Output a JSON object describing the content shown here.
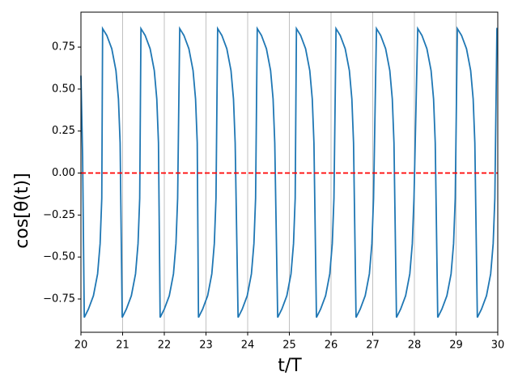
{
  "chart_data": {
    "type": "line",
    "xlabel": "t/T",
    "ylabel": "cos[θ(t)]",
    "x": [
      20.0,
      20.04,
      20.08,
      20.18,
      20.3,
      20.4,
      20.46,
      20.5,
      20.52,
      20.62,
      20.74,
      20.84,
      20.9,
      20.94,
      20.99,
      21.09,
      21.21,
      21.31,
      21.37,
      21.41,
      21.44,
      21.54,
      21.66,
      21.76,
      21.82,
      21.86,
      21.9,
      22.0,
      22.12,
      22.22,
      22.28,
      22.32,
      22.37,
      22.47,
      22.59,
      22.69,
      22.75,
      22.79,
      22.82,
      22.92,
      23.04,
      23.14,
      23.2,
      23.24,
      23.28,
      23.38,
      23.5,
      23.6,
      23.66,
      23.7,
      23.77,
      23.87,
      23.99,
      24.09,
      24.15,
      24.19,
      24.23,
      24.33,
      24.45,
      24.55,
      24.61,
      24.65,
      24.72,
      24.82,
      24.94,
      25.04,
      25.1,
      25.14,
      25.17,
      25.27,
      25.39,
      25.49,
      25.55,
      25.59,
      25.65,
      25.75,
      25.87,
      25.97,
      26.03,
      26.07,
      26.12,
      26.22,
      26.34,
      26.44,
      26.5,
      26.54,
      26.6,
      26.7,
      26.82,
      26.92,
      26.98,
      27.02,
      27.09,
      27.19,
      27.31,
      27.41,
      27.47,
      27.51,
      27.57,
      27.67,
      27.79,
      27.89,
      27.95,
      27.99,
      28.08,
      28.18,
      28.3,
      28.4,
      28.46,
      28.5,
      28.56,
      28.66,
      28.78,
      28.88,
      28.94,
      28.98,
      29.03,
      29.13,
      29.25,
      29.35,
      29.41,
      29.45,
      29.51,
      29.61,
      29.73,
      29.83,
      29.89,
      29.93,
      29.98,
      30.0
    ],
    "series": [
      {
        "color": "#1f77b4",
        "values": [
          0.58,
          0.1,
          -0.86,
          -0.81,
          -0.73,
          -0.6,
          -0.42,
          -0.15,
          0.86,
          0.82,
          0.74,
          0.61,
          0.44,
          0.18,
          -0.86,
          -0.81,
          -0.73,
          -0.6,
          -0.42,
          -0.15,
          0.86,
          0.82,
          0.74,
          0.61,
          0.44,
          0.18,
          -0.86,
          -0.81,
          -0.73,
          -0.6,
          -0.42,
          -0.15,
          0.86,
          0.82,
          0.74,
          0.61,
          0.44,
          0.18,
          -0.86,
          -0.81,
          -0.73,
          -0.6,
          -0.42,
          -0.15,
          0.86,
          0.82,
          0.74,
          0.61,
          0.44,
          0.18,
          -0.86,
          -0.81,
          -0.73,
          -0.6,
          -0.42,
          -0.15,
          0.86,
          0.82,
          0.74,
          0.61,
          0.44,
          0.18,
          -0.86,
          -0.81,
          -0.73,
          -0.6,
          -0.42,
          -0.15,
          0.86,
          0.82,
          0.74,
          0.61,
          0.44,
          0.18,
          -0.86,
          -0.81,
          -0.73,
          -0.6,
          -0.42,
          -0.15,
          0.86,
          0.82,
          0.74,
          0.61,
          0.44,
          0.18,
          -0.86,
          -0.81,
          -0.73,
          -0.6,
          -0.42,
          -0.15,
          0.86,
          0.82,
          0.74,
          0.61,
          0.44,
          0.18,
          -0.86,
          -0.81,
          -0.73,
          -0.6,
          -0.42,
          -0.15,
          0.86,
          0.82,
          0.74,
          0.61,
          0.44,
          0.18,
          -0.86,
          -0.81,
          -0.73,
          -0.6,
          -0.42,
          -0.15,
          0.86,
          0.82,
          0.74,
          0.61,
          0.44,
          0.18,
          -0.86,
          -0.81,
          -0.73,
          -0.6,
          -0.42,
          -0.15,
          0.86,
          0.86
        ]
      }
    ],
    "reference_line": {
      "y": 0,
      "color": "#ff0000",
      "style": "dashed"
    },
    "xlim": [
      20,
      30
    ],
    "ylim": [
      -0.948,
      0.958
    ],
    "xticks": [
      20,
      21,
      22,
      23,
      24,
      25,
      26,
      27,
      28,
      29,
      30
    ],
    "yticks": [
      {
        "value": -0.75,
        "label": "−0.75"
      },
      {
        "value": -0.5,
        "label": "−0.50"
      },
      {
        "value": -0.25,
        "label": "−0.25"
      },
      {
        "value": 0,
        "label": "0.00"
      },
      {
        "value": 0.25,
        "label": "0.25"
      },
      {
        "value": 0.5,
        "label": "0.50"
      },
      {
        "value": 0.75,
        "label": "0.75"
      }
    ],
    "grid": "x"
  }
}
